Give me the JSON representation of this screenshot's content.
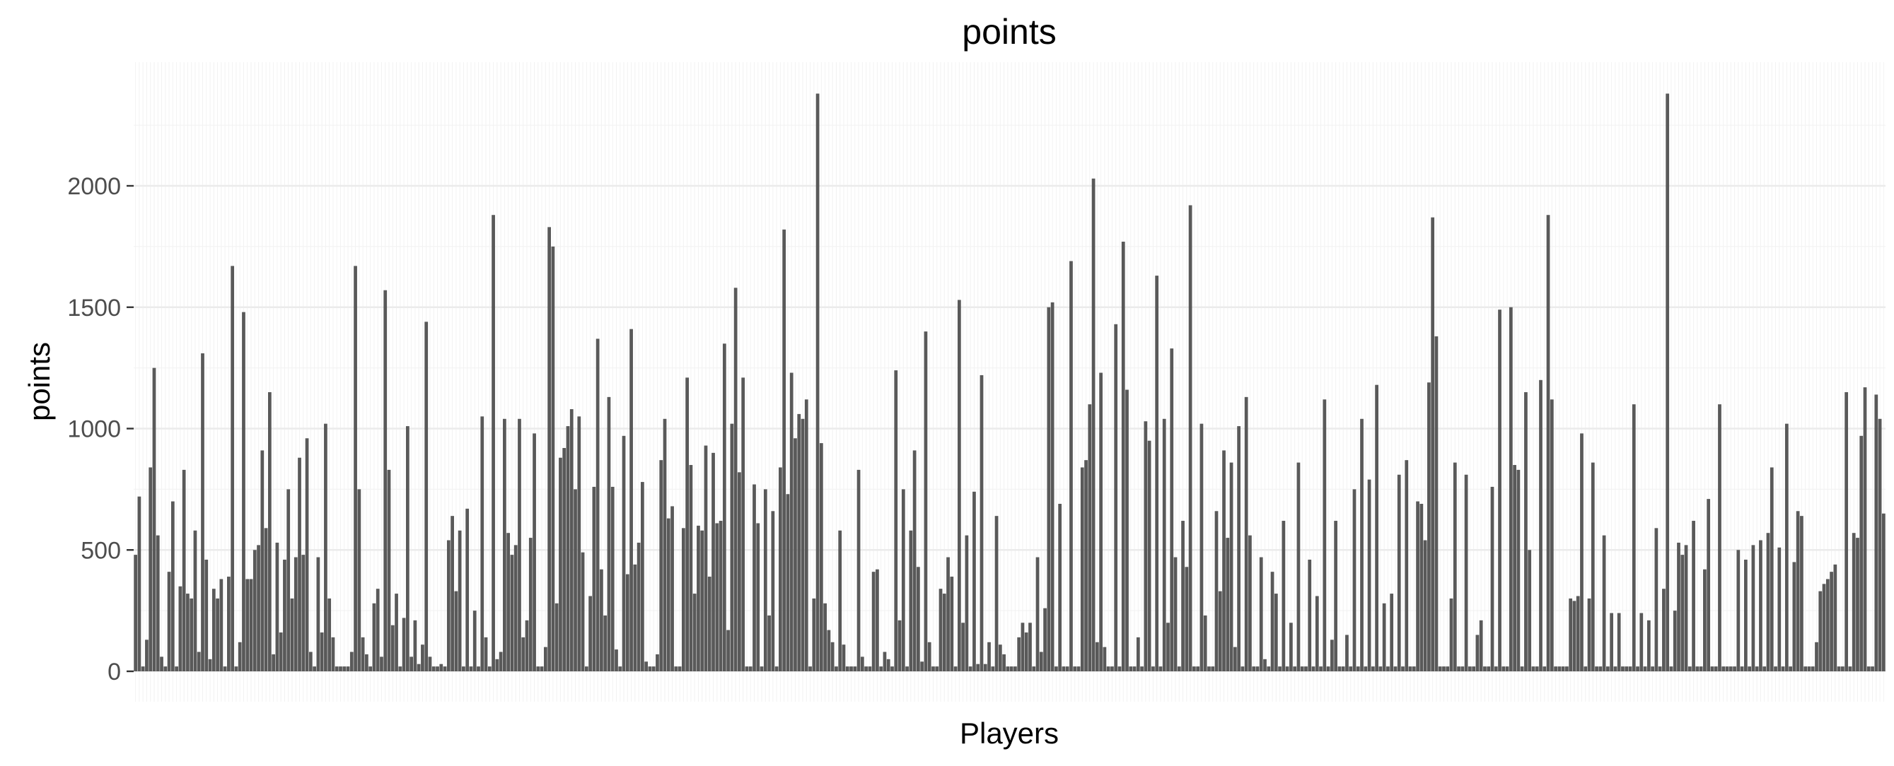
{
  "chart_data": {
    "type": "bar",
    "title": "points",
    "xlabel": "Players",
    "ylabel": "points",
    "ylim": [
      0,
      2500
    ],
    "yticks": [
      0,
      500,
      1000,
      1500,
      2000
    ],
    "ytick_labels": [
      "0",
      "500",
      "1000",
      "1500",
      "2000"
    ],
    "x_ticks_labeled": false,
    "grid": true,
    "panel_background": "#ffffff",
    "grid_color": "#ebebeb",
    "bar_color": "#595959",
    "values": [
      480,
      720,
      20,
      130,
      840,
      1250,
      560,
      60,
      20,
      410,
      700,
      20,
      350,
      830,
      320,
      300,
      580,
      80,
      1310,
      460,
      50,
      340,
      300,
      380,
      20,
      390,
      1670,
      20,
      120,
      1480,
      380,
      380,
      500,
      520,
      910,
      590,
      1150,
      70,
      530,
      160,
      460,
      750,
      300,
      470,
      880,
      480,
      960,
      80,
      20,
      470,
      160,
      1020,
      300,
      140,
      20,
      20,
      20,
      20,
      80,
      1670,
      750,
      140,
      70,
      20,
      280,
      340,
      60,
      1570,
      830,
      190,
      320,
      20,
      220,
      1010,
      60,
      210,
      30,
      110,
      1440,
      60,
      20,
      20,
      30,
      20,
      540,
      640,
      330,
      580,
      20,
      670,
      20,
      250,
      20,
      1050,
      140,
      20,
      1880,
      50,
      80,
      1040,
      570,
      480,
      520,
      1040,
      140,
      210,
      550,
      980,
      20,
      20,
      100,
      1830,
      1750,
      280,
      880,
      920,
      1010,
      1080,
      750,
      1050,
      490,
      20,
      310,
      760,
      1370,
      420,
      230,
      1130,
      760,
      90,
      20,
      970,
      400,
      1410,
      440,
      530,
      780,
      40,
      20,
      20,
      70,
      870,
      1040,
      630,
      680,
      20,
      20,
      590,
      1210,
      850,
      320,
      600,
      580,
      930,
      390,
      900,
      610,
      620,
      1350,
      170,
      1020,
      1580,
      820,
      1210,
      20,
      20,
      770,
      610,
      20,
      750,
      230,
      660,
      20,
      840,
      1820,
      730,
      1230,
      960,
      1060,
      1040,
      1120,
      20,
      300,
      2380,
      940,
      280,
      170,
      120,
      20,
      580,
      110,
      20,
      20,
      20,
      830,
      60,
      20,
      20,
      410,
      420,
      20,
      80,
      50,
      20,
      1240,
      210,
      750,
      20,
      580,
      910,
      430,
      40,
      1400,
      120,
      20,
      20,
      340,
      320,
      470,
      390,
      20,
      1530,
      200,
      560,
      20,
      740,
      30,
      1220,
      30,
      120,
      20,
      640,
      110,
      70,
      20,
      20,
      20,
      140,
      200,
      160,
      200,
      20,
      470,
      80,
      260,
      1500,
      1520,
      20,
      690,
      20,
      20,
      1690,
      20,
      20,
      840,
      870,
      1100,
      2030,
      120,
      1230,
      100,
      20,
      20,
      1430,
      20,
      1770,
      1160,
      20,
      20,
      140,
      20,
      1030,
      950,
      20,
      1630,
      20,
      1040,
      200,
      1330,
      470,
      20,
      620,
      430,
      1920,
      20,
      20,
      1020,
      230,
      20,
      20,
      660,
      330,
      910,
      550,
      860,
      100,
      1010,
      20,
      1130,
      560,
      20,
      20,
      470,
      50,
      20,
      410,
      320,
      20,
      620,
      20,
      200,
      20,
      860,
      20,
      20,
      460,
      20,
      310,
      20,
      1120,
      20,
      130,
      620,
      20,
      20,
      150,
      20,
      750,
      20,
      1040,
      20,
      790,
      20,
      1180,
      20,
      280,
      20,
      320,
      20,
      810,
      20,
      870,
      20,
      20,
      700,
      690,
      540,
      1190,
      1870,
      1380,
      20,
      20,
      20,
      300,
      860,
      20,
      20,
      810,
      20,
      20,
      150,
      210,
      20,
      20,
      760,
      20,
      1490,
      20,
      20,
      1500,
      850,
      830,
      20,
      1150,
      500,
      20,
      20,
      1200,
      20,
      1880,
      1120,
      20,
      20,
      20,
      20,
      300,
      290,
      310,
      980,
      20,
      300,
      860,
      20,
      20,
      560,
      20,
      240,
      20,
      240,
      20,
      20,
      20,
      1100,
      20,
      240,
      20,
      210,
      20,
      590,
      20,
      340,
      2380,
      20,
      250,
      530,
      480,
      520,
      20,
      620,
      20,
      20,
      420,
      710,
      20,
      20,
      1100,
      20,
      20,
      20,
      20,
      500,
      20,
      460,
      20,
      520,
      20,
      540,
      20,
      570,
      840,
      20,
      510,
      20,
      1020,
      20,
      450,
      660,
      640,
      20,
      20,
      20,
      120,
      330,
      360,
      380,
      410,
      440,
      20,
      20,
      1150,
      20,
      570,
      550,
      970,
      1170,
      20,
      20,
      1140,
      1040,
      650
    ]
  }
}
